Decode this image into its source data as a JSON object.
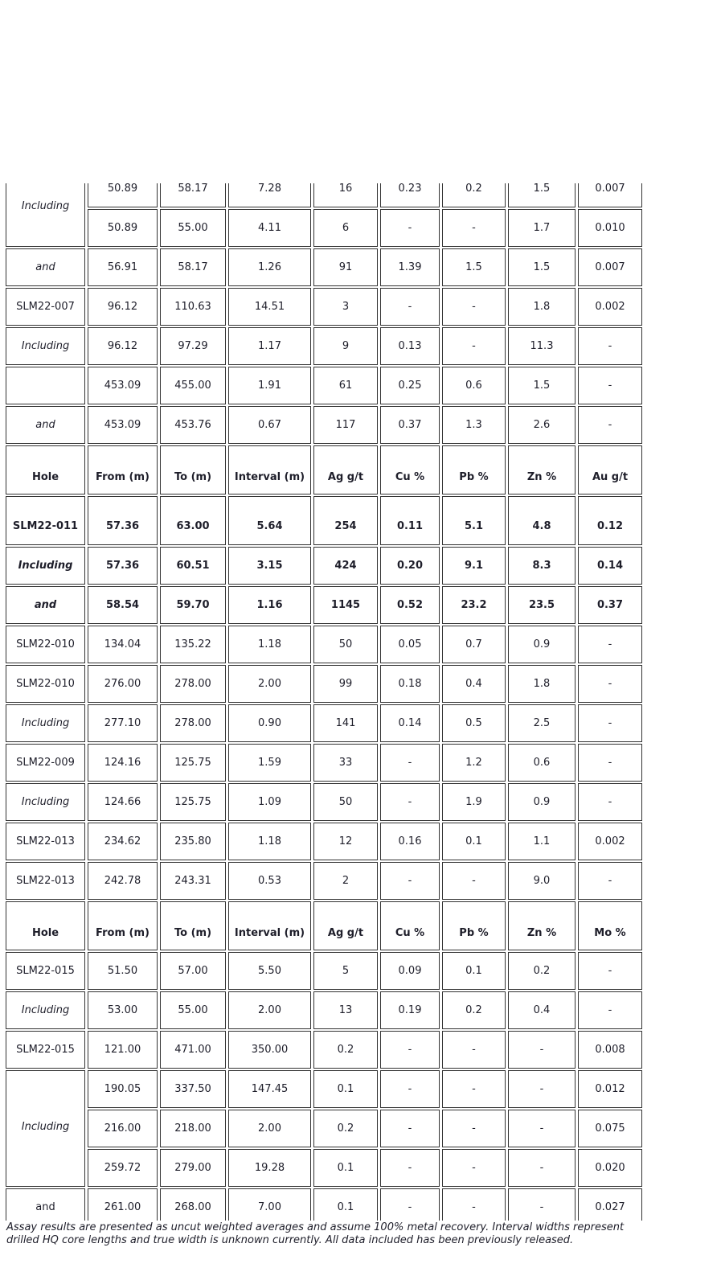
{
  "table": {
    "sections": [
      {
        "header": null,
        "rows": [
          {
            "hole": "Including",
            "hole_italic": true,
            "hole_rowspan": 2,
            "values": [
              "50.89",
              "58.17",
              "7.28",
              "16",
              "0.23",
              "0.2",
              "1.5",
              "0.007"
            ]
          },
          {
            "hole_covered": true,
            "values": [
              "50.89",
              "55.00",
              "4.11",
              "6",
              "-",
              "-",
              "1.7",
              "0.010"
            ]
          },
          {
            "hole": "and",
            "hole_italic": true,
            "values": [
              "56.91",
              "58.17",
              "1.26",
              "91",
              "1.39",
              "1.5",
              "1.5",
              "0.007"
            ]
          },
          {
            "hole": "SLM22-007",
            "values": [
              "96.12",
              "110.63",
              "14.51",
              "3",
              "-",
              "-",
              "1.8",
              "0.002"
            ]
          },
          {
            "hole": "Including",
            "hole_italic": true,
            "values": [
              "96.12",
              "97.29",
              "1.17",
              "9",
              "0.13",
              "-",
              "11.3",
              "-"
            ]
          },
          {
            "hole": "",
            "values": [
              "453.09",
              "455.00",
              "1.91",
              "61",
              "0.25",
              "0.6",
              "1.5",
              "-"
            ]
          },
          {
            "hole": "and",
            "hole_italic": true,
            "values": [
              "453.09",
              "453.76",
              "0.67",
              "117",
              "0.37",
              "1.3",
              "2.6",
              "-"
            ]
          }
        ]
      },
      {
        "header": [
          "Hole",
          "From (m)",
          "To (m)",
          "Interval (m)",
          "Ag g/t",
          "Cu %",
          "Pb %",
          "Zn %",
          "Au g/t"
        ],
        "rows": [
          {
            "hole": "SLM22-011",
            "bold": true,
            "tall": true,
            "values": [
              "57.36",
              "63.00",
              "5.64",
              "254",
              "0.11",
              "5.1",
              "4.8",
              "0.12"
            ]
          },
          {
            "hole": "Including",
            "hole_italic": true,
            "bold": true,
            "values": [
              "57.36",
              "60.51",
              "3.15",
              "424",
              "0.20",
              "9.1",
              "8.3",
              "0.14"
            ]
          },
          {
            "hole": "and",
            "hole_italic": true,
            "bold": true,
            "values": [
              "58.54",
              "59.70",
              "1.16",
              "1145",
              "0.52",
              "23.2",
              "23.5",
              "0.37"
            ]
          },
          {
            "hole": "SLM22-010",
            "values": [
              "134.04",
              "135.22",
              "1.18",
              "50",
              "0.05",
              "0.7",
              "0.9",
              "-"
            ]
          },
          {
            "hole": "SLM22-010",
            "values": [
              "276.00",
              "278.00",
              "2.00",
              "99",
              "0.18",
              "0.4",
              "1.8",
              "-"
            ]
          },
          {
            "hole": "Including",
            "hole_italic": true,
            "values": [
              "277.10",
              "278.00",
              "0.90",
              "141",
              "0.14",
              "0.5",
              "2.5",
              "-"
            ]
          },
          {
            "hole": "SLM22-009",
            "values": [
              "124.16",
              "125.75",
              "1.59",
              "33",
              "-",
              "1.2",
              "0.6",
              "-"
            ]
          },
          {
            "hole": "Including",
            "hole_italic": true,
            "values": [
              "124.66",
              "125.75",
              "1.09",
              "50",
              "-",
              "1.9",
              "0.9",
              "-"
            ]
          },
          {
            "hole": "SLM22-013",
            "values": [
              "234.62",
              "235.80",
              "1.18",
              "12",
              "0.16",
              "0.1",
              "1.1",
              "0.002"
            ]
          },
          {
            "hole": "SLM22-013",
            "values": [
              "242.78",
              "243.31",
              "0.53",
              "2",
              "-",
              "-",
              "9.0",
              "-"
            ]
          }
        ]
      },
      {
        "header": [
          "Hole",
          "From (m)",
          "To (m)",
          "Interval (m)",
          "Ag g/t",
          "Cu %",
          "Pb %",
          "Zn %",
          "Mo %"
        ],
        "rows": [
          {
            "hole": "SLM22-015",
            "values": [
              "51.50",
              "57.00",
              "5.50",
              "5",
              "0.09",
              "0.1",
              "0.2",
              "-"
            ]
          },
          {
            "hole": "Including",
            "hole_italic": true,
            "values": [
              "53.00",
              "55.00",
              "2.00",
              "13",
              "0.19",
              "0.2",
              "0.4",
              "-"
            ]
          },
          {
            "hole": "SLM22-015",
            "values": [
              "121.00",
              "471.00",
              "350.00",
              "0.2",
              "-",
              "-",
              "-",
              "0.008"
            ]
          },
          {
            "hole": "Including",
            "hole_italic": true,
            "hole_rowspan": 3,
            "values": [
              "190.05",
              "337.50",
              "147.45",
              "0.1",
              "-",
              "-",
              "-",
              "0.012"
            ]
          },
          {
            "hole_covered": true,
            "values": [
              "216.00",
              "218.00",
              "2.00",
              "0.2",
              "-",
              "-",
              "-",
              "0.075"
            ]
          },
          {
            "hole_covered": true,
            "values": [
              "259.72",
              "279.00",
              "19.28",
              "0.1",
              "-",
              "-",
              "-",
              "0.020"
            ]
          },
          {
            "hole": "and",
            "values": [
              "261.00",
              "268.00",
              "7.00",
              "0.1",
              "-",
              "-",
              "-",
              "0.027"
            ]
          }
        ]
      }
    ]
  },
  "footnote": "Assay results are presented as uncut weighted averages and assume 100% metal recovery. Interval widths represent drilled HQ core lengths and true width is unknown currently. All data included has been previously released."
}
